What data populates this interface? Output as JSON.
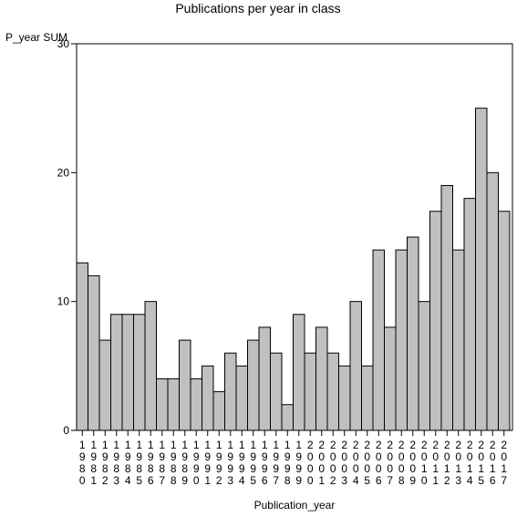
{
  "chart_data": {
    "type": "bar",
    "title": "Publications per year in class",
    "ylabel": "P_year SUM",
    "xlabel": "Publication_year",
    "ylim": [
      0,
      30
    ],
    "yticks": [
      0,
      10,
      20,
      30
    ],
    "categories": [
      "1980",
      "1981",
      "1982",
      "1983",
      "1984",
      "1985",
      "1986",
      "1987",
      "1988",
      "1989",
      "1990",
      "1991",
      "1992",
      "1993",
      "1994",
      "1995",
      "1996",
      "1997",
      "1998",
      "1999",
      "2000",
      "2001",
      "2002",
      "2003",
      "2004",
      "2005",
      "2006",
      "2007",
      "2008",
      "2009",
      "2010",
      "2011",
      "2012",
      "2013",
      "2014",
      "2015",
      "2016",
      "2017"
    ],
    "values": [
      13,
      12,
      7,
      9,
      9,
      9,
      10,
      4,
      4,
      7,
      4,
      5,
      3,
      6,
      5,
      7,
      8,
      6,
      2,
      9,
      6,
      8,
      6,
      5,
      10,
      5,
      14,
      8,
      14,
      15,
      10,
      17,
      19,
      14,
      18,
      25,
      20,
      17
    ],
    "bar_color": "#c0c0c0",
    "grid": false
  }
}
